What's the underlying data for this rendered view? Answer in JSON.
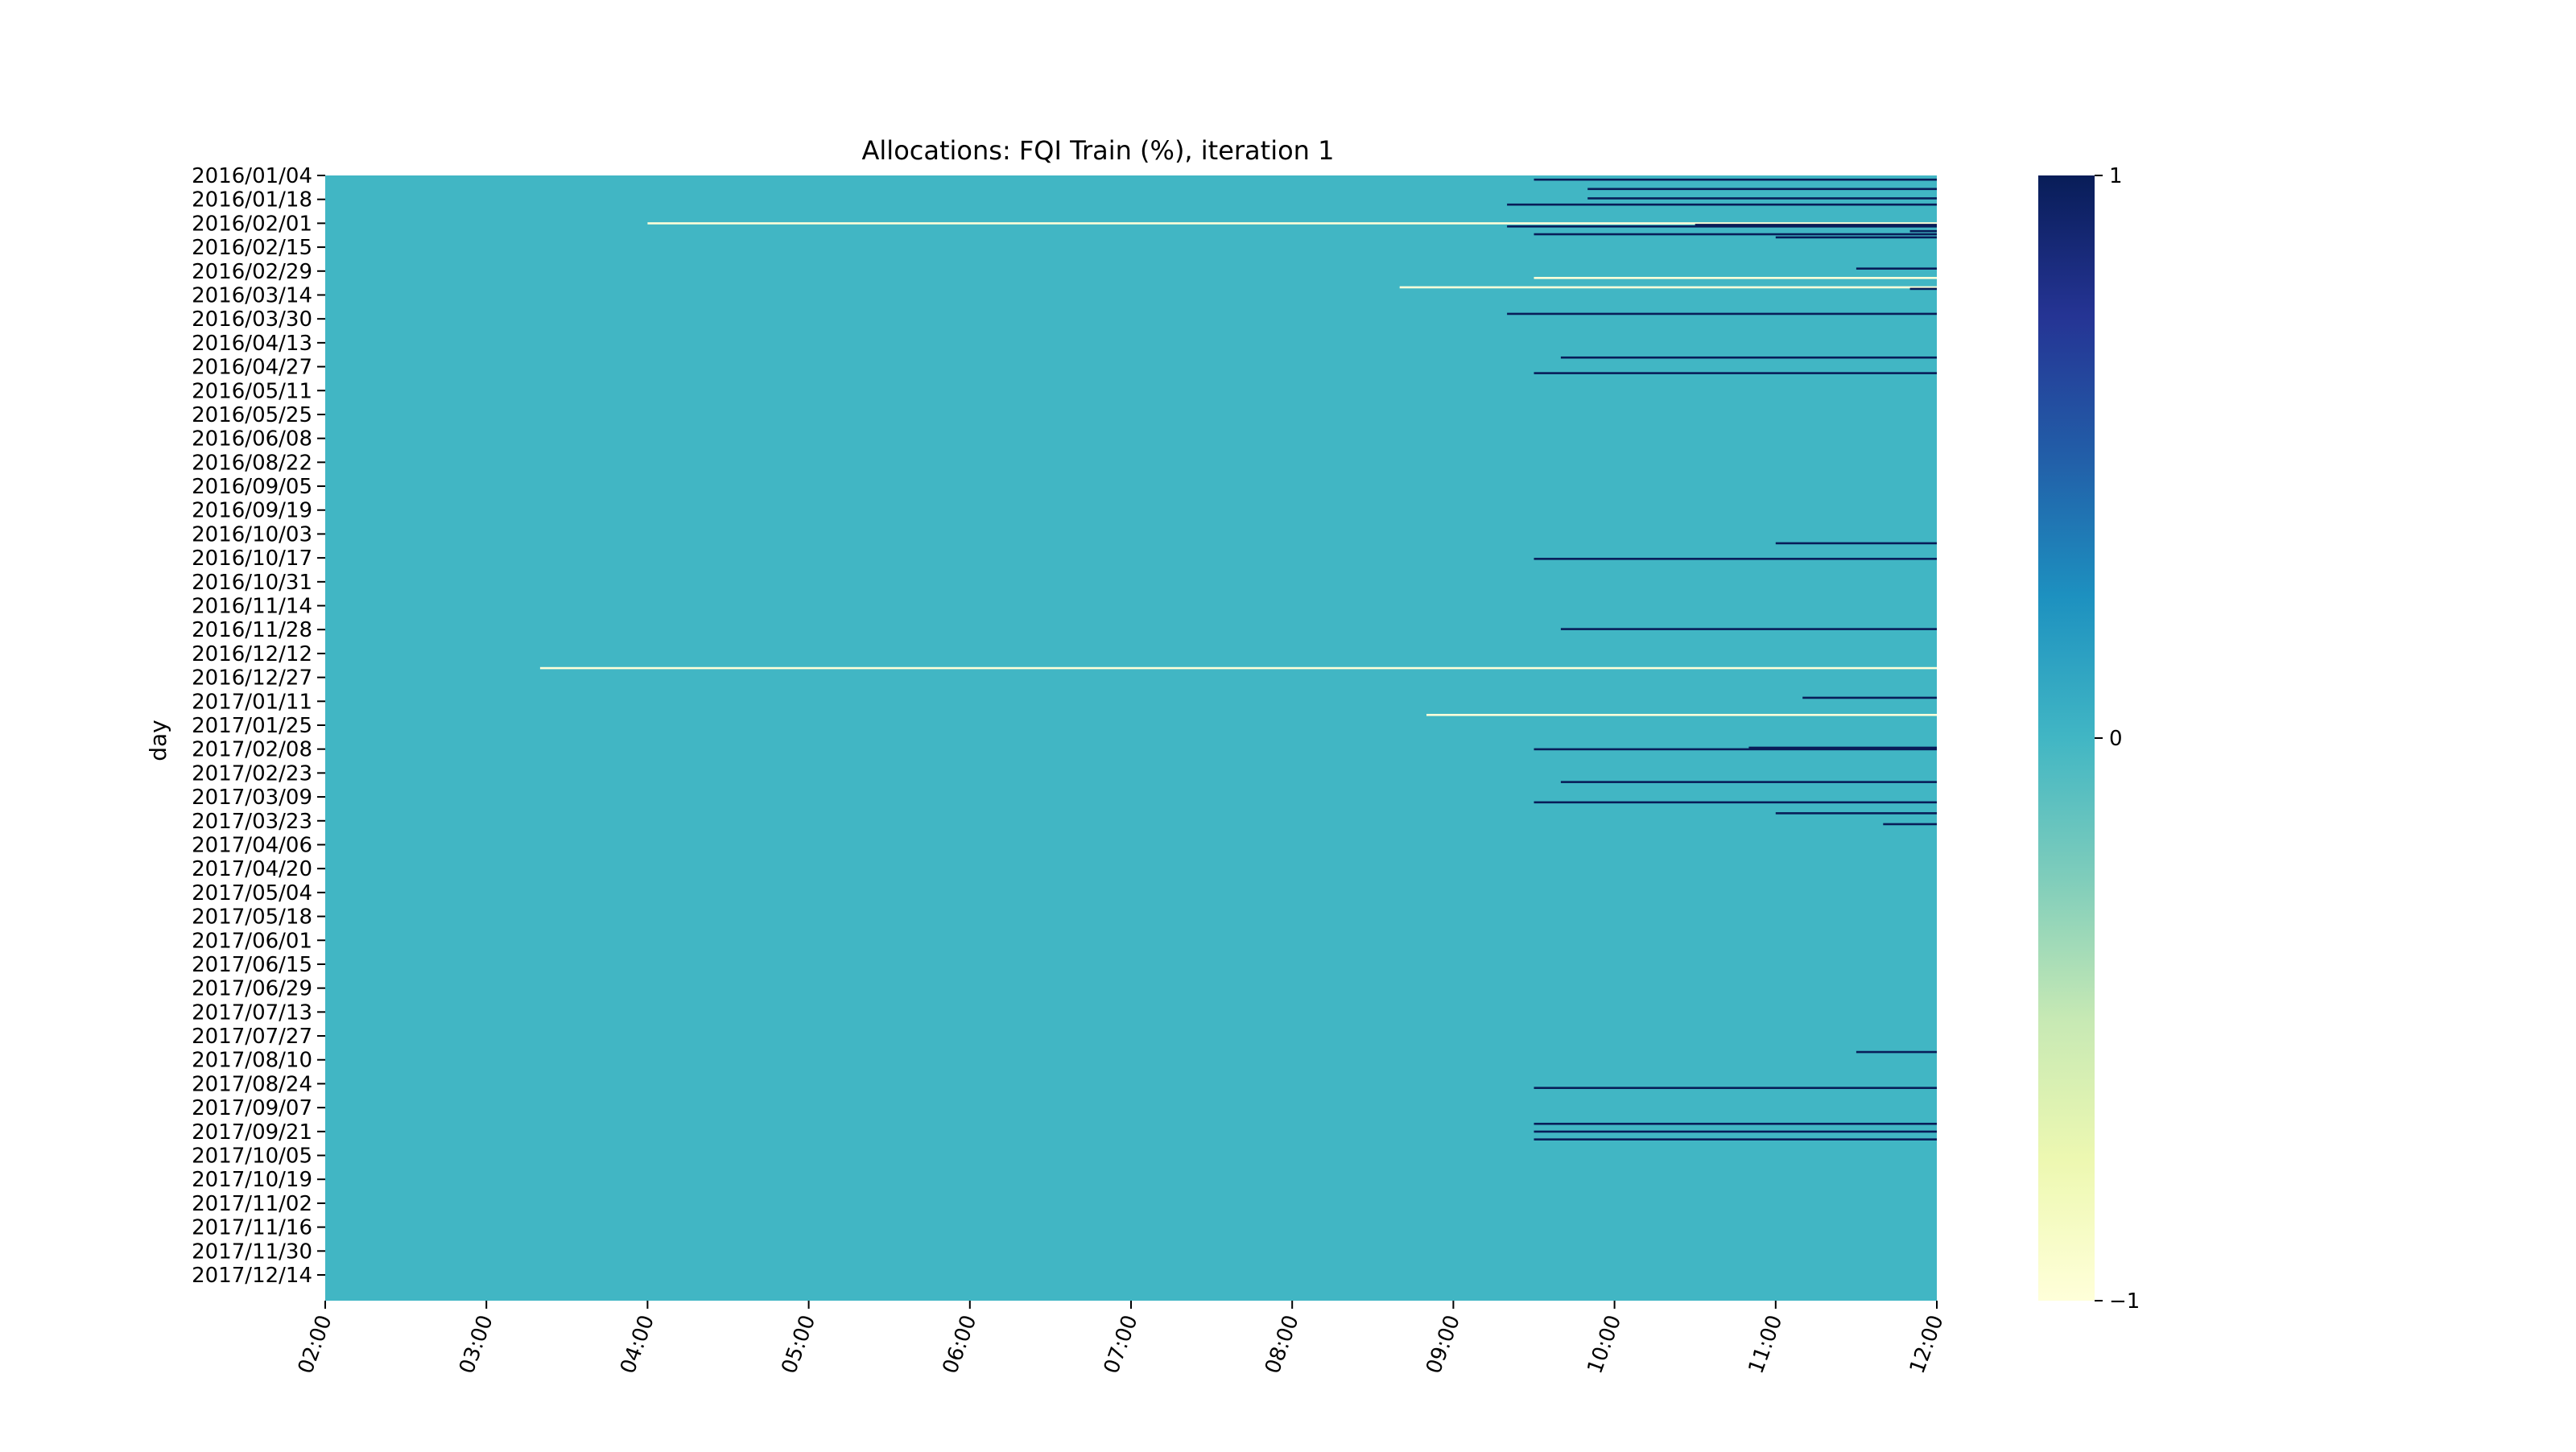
{
  "chart_data": {
    "type": "heatmap",
    "title": "Allocations: FQI Train (%), iteration 1",
    "xlabel": "",
    "ylabel": "day",
    "colormap": "YlGnBu",
    "vmin": -1,
    "vmax": 1,
    "background_value": 0,
    "x_ticks": [
      "02:00",
      "03:00",
      "04:00",
      "05:00",
      "06:00",
      "07:00",
      "08:00",
      "09:00",
      "10:00",
      "11:00",
      "12:00"
    ],
    "y_ticks": [
      "2016/01/04",
      "2016/01/18",
      "2016/02/01",
      "2016/02/15",
      "2016/02/29",
      "2016/03/14",
      "2016/03/30",
      "2016/04/13",
      "2016/04/27",
      "2016/05/11",
      "2016/05/25",
      "2016/06/08",
      "2016/08/22",
      "2016/09/05",
      "2016/09/19",
      "2016/10/03",
      "2016/10/17",
      "2016/10/31",
      "2016/11/14",
      "2016/11/28",
      "2016/12/12",
      "2016/12/27",
      "2017/01/11",
      "2017/01/25",
      "2017/02/08",
      "2017/02/23",
      "2017/03/09",
      "2017/03/23",
      "2017/04/06",
      "2017/04/20",
      "2017/05/04",
      "2017/05/18",
      "2017/06/01",
      "2017/06/15",
      "2017/06/29",
      "2017/07/13",
      "2017/07/27",
      "2017/08/10",
      "2017/08/24",
      "2017/09/07",
      "2017/09/21",
      "2017/10/05",
      "2017/10/19",
      "2017/11/02",
      "2017/11/16",
      "2017/11/30",
      "2017/12/14"
    ],
    "colorbar_ticks": [
      "1",
      "0",
      "−1"
    ],
    "cells": [
      {
        "day": "2016/01/06",
        "start": "09:30",
        "end": "12:00",
        "value": 1
      },
      {
        "day": "2016/01/12",
        "start": "09:50",
        "end": "12:00",
        "value": 1
      },
      {
        "day": "2016/01/18",
        "start": "09:50",
        "end": "12:00",
        "value": 1
      },
      {
        "day": "2016/01/22",
        "start": "09:20",
        "end": "12:00",
        "value": 1
      },
      {
        "day": "2016/02/03",
        "start": "04:00",
        "end": "12:00",
        "value": -1
      },
      {
        "day": "2016/02/04",
        "start": "10:30",
        "end": "12:00",
        "value": 1
      },
      {
        "day": "2016/02/05",
        "start": "09:20",
        "end": "12:00",
        "value": 1
      },
      {
        "day": "2016/02/08",
        "start": "11:50",
        "end": "12:00",
        "value": 1
      },
      {
        "day": "2016/02/10",
        "start": "09:30",
        "end": "12:00",
        "value": 1
      },
      {
        "day": "2016/02/12",
        "start": "11:00",
        "end": "12:00",
        "value": 1
      },
      {
        "day": "2016/03/03",
        "start": "11:30",
        "end": "12:00",
        "value": 1
      },
      {
        "day": "2016/03/09",
        "start": "09:30",
        "end": "12:00",
        "value": -1
      },
      {
        "day": "2016/03/15",
        "start": "08:40",
        "end": "12:00",
        "value": -1
      },
      {
        "day": "2016/03/16",
        "start": "11:50",
        "end": "12:00",
        "value": 1
      },
      {
        "day": "2016/04/01",
        "start": "09:20",
        "end": "12:00",
        "value": 1
      },
      {
        "day": "2016/04/29",
        "start": "09:40",
        "end": "12:00",
        "value": 1
      },
      {
        "day": "2016/05/09",
        "start": "09:30",
        "end": "12:00",
        "value": 1
      },
      {
        "day": "2016/08/26",
        "start": "11:00",
        "end": "12:00",
        "value": 1
      },
      {
        "day": "2016/09/05",
        "start": "09:30",
        "end": "12:00",
        "value": 1
      },
      {
        "day": "2016/10/20",
        "start": "09:40",
        "end": "12:00",
        "value": 1
      },
      {
        "day": "2016/11/14",
        "start": "03:20",
        "end": "12:00",
        "value": -1
      },
      {
        "day": "2016/12/03",
        "start": "11:10",
        "end": "12:00",
        "value": 1
      },
      {
        "day": "2016/12/14",
        "start": "08:50",
        "end": "12:00",
        "value": -1
      },
      {
        "day": "2017/01/04",
        "start": "10:50",
        "end": "12:00",
        "value": 1
      },
      {
        "day": "2017/01/05",
        "start": "09:30",
        "end": "12:00",
        "value": 1
      },
      {
        "day": "2017/01/26",
        "start": "09:40",
        "end": "12:00",
        "value": 1
      },
      {
        "day": "2017/02/08",
        "start": "09:30",
        "end": "12:00",
        "value": 1
      },
      {
        "day": "2017/02/15",
        "start": "11:00",
        "end": "12:00",
        "value": 1
      },
      {
        "day": "2017/02/22",
        "start": "11:40",
        "end": "12:00",
        "value": 1
      },
      {
        "day": "2017/07/18",
        "start": "11:30",
        "end": "12:00",
        "value": 1
      },
      {
        "day": "2017/08/10",
        "start": "09:30",
        "end": "12:00",
        "value": 1
      },
      {
        "day": "2017/09/02",
        "start": "09:30",
        "end": "12:00",
        "value": 1
      },
      {
        "day": "2017/09/07",
        "start": "09:30",
        "end": "12:00",
        "value": 1
      },
      {
        "day": "2017/09/12",
        "start": "09:30",
        "end": "12:00",
        "value": 1
      }
    ]
  }
}
